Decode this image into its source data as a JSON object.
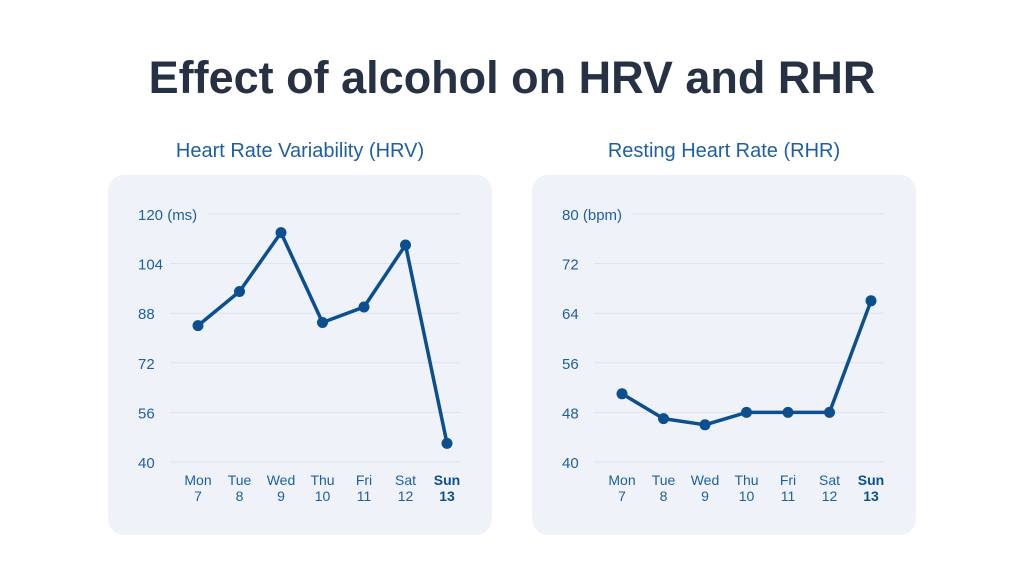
{
  "title": "Effect of alcohol on HRV and RHR",
  "colors": {
    "line": "#0b4f8f",
    "label": "#1d5fa0",
    "grid": "#dde3ec",
    "card": "#eff3f9"
  },
  "chart_data": [
    {
      "type": "line",
      "title": "Heart Rate Variability (HRV)",
      "unit": "(ms)",
      "categories": [
        [
          "Mon",
          "7"
        ],
        [
          "Tue",
          "8"
        ],
        [
          "Wed",
          "9"
        ],
        [
          "Thu",
          "10"
        ],
        [
          "Fri",
          "11"
        ],
        [
          "Sat",
          "12"
        ],
        [
          "Sun",
          "13"
        ]
      ],
      "highlight_category": 6,
      "values": [
        84,
        95,
        114,
        85,
        90,
        110,
        46
      ],
      "yticks": [
        40,
        56,
        72,
        88,
        104,
        120
      ],
      "ylim": [
        40,
        120
      ],
      "grid": true
    },
    {
      "type": "line",
      "title": "Resting Heart Rate (RHR)",
      "unit": "(bpm)",
      "categories": [
        [
          "Mon",
          "7"
        ],
        [
          "Tue",
          "8"
        ],
        [
          "Wed",
          "9"
        ],
        [
          "Thu",
          "10"
        ],
        [
          "Fri",
          "11"
        ],
        [
          "Sat",
          "12"
        ],
        [
          "Sun",
          "13"
        ]
      ],
      "highlight_category": 6,
      "values": [
        51,
        47,
        46,
        48,
        48,
        48,
        66
      ],
      "yticks": [
        40,
        48,
        56,
        64,
        72,
        80
      ],
      "ylim": [
        40,
        80
      ],
      "grid": true
    }
  ]
}
